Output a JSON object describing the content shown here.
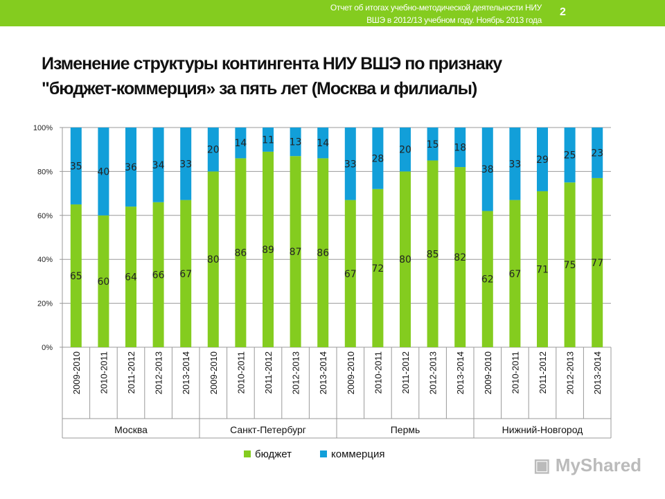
{
  "header": {
    "report_line1": "Отчет об итогах учебно-методической деятельности НИУ",
    "report_line2": "ВШЭ в 2012/13 учебном году. Ноябрь 2013 года",
    "page_number": "2"
  },
  "title_line1": "Изменение структуры контингента  НИУ ВШЭ по признаку",
  "title_line2": "\"бюджет-коммерция» за пять лет (Москва и филиалы)",
  "watermark": "MyShared",
  "chart_data": {
    "type": "bar",
    "stacked": true,
    "percent": true,
    "ylim": [
      0,
      100
    ],
    "yticks": [
      "0%",
      "20%",
      "40%",
      "60%",
      "80%",
      "100%"
    ],
    "grid": true,
    "legend_position": "bottom",
    "groups": [
      {
        "name": "Москва",
        "categories": [
          "2009-2010",
          "2010-2011",
          "2011-2012",
          "2012-2013",
          "2013-2014"
        ]
      },
      {
        "name": "Санкт-Петербург",
        "categories": [
          "2009-2010",
          "2010-2011",
          "2011-2012",
          "2012-2013",
          "2013-2014"
        ]
      },
      {
        "name": "Пермь",
        "categories": [
          "2009-2010",
          "2010-2011",
          "2011-2012",
          "2012-2013",
          "2013-2014"
        ]
      },
      {
        "name": "Нижний-Новгород",
        "categories": [
          "2009-2010",
          "2010-2011",
          "2011-2012",
          "2012-2013",
          "2013-2014"
        ]
      }
    ],
    "series": [
      {
        "name": "бюджет",
        "color": "#84cc1f",
        "values": [
          65,
          60,
          64,
          66,
          67,
          80,
          86,
          89,
          87,
          86,
          67,
          72,
          80,
          85,
          82,
          62,
          67,
          71,
          75,
          77
        ]
      },
      {
        "name": "коммерция",
        "color": "#129fd9",
        "values": [
          35,
          40,
          36,
          34,
          33,
          20,
          14,
          11,
          13,
          14,
          33,
          28,
          20,
          15,
          18,
          38,
          33,
          29,
          25,
          23
        ]
      }
    ]
  }
}
